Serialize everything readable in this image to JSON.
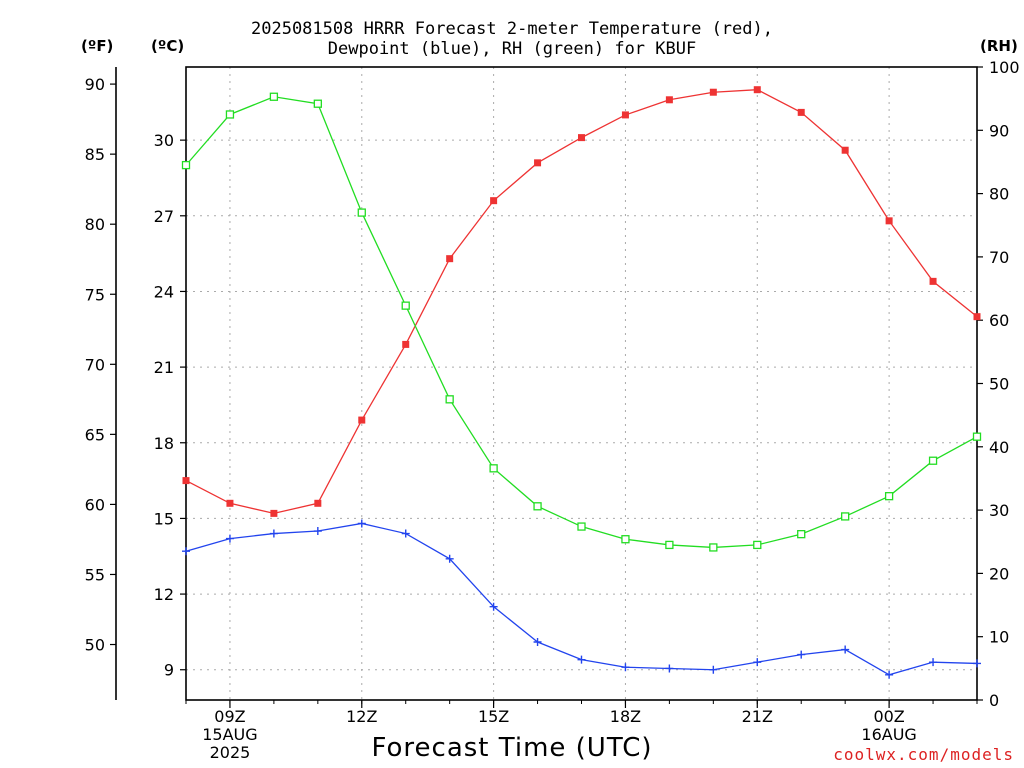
{
  "title_line1": "2025081508 HRRR Forecast 2-meter Temperature (red),",
  "title_line2": "Dewpoint (blue), RH (green) for KBUF",
  "unit_f": "(ºF)",
  "unit_c": "(ºC)",
  "unit_rh": "(RH)",
  "xlabel": "Forecast Time (UTC)",
  "credit": "coolwx.com/models",
  "colors": {
    "temperature": "#ee3333",
    "dewpoint": "#2244ee",
    "rh": "#22dd22",
    "grid": "#aaaaaa"
  },
  "chart_data": {
    "type": "line",
    "title": "2025081508 HRRR Forecast 2-meter Temperature (red), Dewpoint (blue), RH (green) for KBUF",
    "xlabel": "Forecast Time (UTC)",
    "x": [
      "08Z",
      "09Z",
      "10Z",
      "11Z",
      "12Z",
      "13Z",
      "14Z",
      "15Z",
      "16Z",
      "17Z",
      "18Z",
      "19Z",
      "20Z",
      "21Z",
      "22Z",
      "23Z",
      "00Z",
      "01Z",
      "02Z"
    ],
    "x_ticks": [
      {
        "x": "09Z",
        "lines": [
          "09Z",
          "15AUG",
          "2025"
        ]
      },
      {
        "x": "12Z",
        "lines": [
          "12Z"
        ]
      },
      {
        "x": "15Z",
        "lines": [
          "15Z"
        ]
      },
      {
        "x": "18Z",
        "lines": [
          "18Z"
        ]
      },
      {
        "x": "21Z",
        "lines": [
          "21Z"
        ]
      },
      {
        "x": "00Z",
        "lines": [
          "00Z",
          "16AUG"
        ]
      }
    ],
    "y_left_c": {
      "label": "(ºC)",
      "lim": [
        7.8,
        32.9
      ],
      "ticks": [
        9,
        12,
        15,
        18,
        21,
        24,
        27,
        30
      ]
    },
    "y_left_f": {
      "label": "(ºF)",
      "ticks": [
        50,
        55,
        60,
        65,
        70,
        75,
        80,
        85,
        90
      ]
    },
    "y_right_rh": {
      "label": "(RH)",
      "lim": [
        0,
        100
      ],
      "ticks": [
        0,
        10,
        20,
        30,
        40,
        50,
        60,
        70,
        80,
        90,
        100
      ]
    },
    "grid": true,
    "series": [
      {
        "name": "Temperature",
        "axis": "c",
        "color": "#ee3333",
        "marker": "filled-square",
        "values": [
          16.5,
          15.6,
          15.2,
          15.6,
          18.9,
          21.9,
          25.3,
          27.6,
          29.1,
          30.1,
          31.0,
          31.6,
          31.9,
          32.0,
          31.1,
          29.6,
          26.8,
          24.4,
          23.0
        ]
      },
      {
        "name": "Dewpoint",
        "axis": "c",
        "color": "#2244ee",
        "marker": "plus",
        "values": [
          13.7,
          14.2,
          14.4,
          14.5,
          14.8,
          14.4,
          13.4,
          11.5,
          10.1,
          9.4,
          9.1,
          9.05,
          9.0,
          9.3,
          9.6,
          9.8,
          8.8,
          9.3,
          9.25
        ]
      },
      {
        "name": "RH",
        "axis": "rh",
        "color": "#22dd22",
        "marker": "open-square",
        "values": [
          84.5,
          92.5,
          95.3,
          94.2,
          77.0,
          62.3,
          47.5,
          36.6,
          30.6,
          27.4,
          25.4,
          24.5,
          24.1,
          24.5,
          26.2,
          29.0,
          32.2,
          37.8,
          41.6
        ]
      }
    ]
  }
}
